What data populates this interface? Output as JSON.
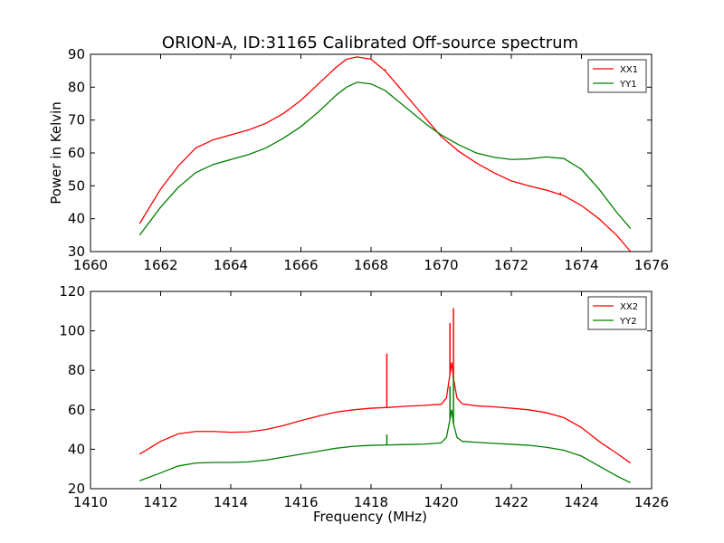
{
  "chart_data": [
    {
      "type": "line",
      "title": "ORION-A, ID:31165 Calibrated Off-source spectrum",
      "xlabel": "",
      "ylabel": "Power in Kelvin",
      "xlim": [
        1660,
        1676
      ],
      "ylim": [
        30,
        90
      ],
      "xticks": [
        1660,
        1662,
        1664,
        1666,
        1668,
        1670,
        1672,
        1674,
        1676
      ],
      "yticks": [
        30,
        40,
        50,
        60,
        70,
        80,
        90
      ],
      "legend": "top-right",
      "grid": false,
      "series": [
        {
          "name": "XX1",
          "color": "#ff0000",
          "x": [
            1661.4,
            1662.0,
            1662.5,
            1663.0,
            1663.5,
            1664.0,
            1664.5,
            1665.0,
            1665.5,
            1666.0,
            1666.5,
            1667.0,
            1667.3,
            1667.6,
            1668.0,
            1668.4,
            1668.8,
            1669.2,
            1669.6,
            1670.0,
            1670.5,
            1671.0,
            1671.5,
            1672.0,
            1672.5,
            1673.0,
            1673.5,
            1674.0,
            1674.5,
            1675.0,
            1675.4
          ],
          "y": [
            38.5,
            49,
            56,
            61.5,
            64,
            65.5,
            67,
            69,
            72,
            76,
            81,
            86,
            88.5,
            89.2,
            88.5,
            85,
            80,
            75,
            70,
            65,
            60.5,
            57,
            54,
            51.5,
            50,
            48.7,
            47,
            44,
            40,
            35,
            30
          ]
        },
        {
          "name": "YY1",
          "color": "#008000",
          "x": [
            1661.4,
            1662.0,
            1662.5,
            1663.0,
            1663.5,
            1664.0,
            1664.5,
            1665.0,
            1665.5,
            1666.0,
            1666.5,
            1667.0,
            1667.3,
            1667.6,
            1668.0,
            1668.4,
            1668.8,
            1669.2,
            1669.6,
            1670.0,
            1670.5,
            1671.0,
            1671.5,
            1672.0,
            1672.5,
            1673.0,
            1673.5,
            1674.0,
            1674.5,
            1675.0,
            1675.4
          ],
          "y": [
            35,
            43.5,
            49.5,
            54,
            56.5,
            58,
            59.5,
            61.5,
            64.5,
            68,
            72.5,
            77.5,
            80,
            81.5,
            81,
            79,
            75.5,
            72,
            68.5,
            65.5,
            62.5,
            60,
            58.7,
            58,
            58.2,
            58.8,
            58.3,
            55,
            49,
            42,
            37
          ]
        }
      ],
      "spikes": [
        {
          "series": "XX1",
          "x": 1668.4,
          "y_top": 85.5
        },
        {
          "series": "XX1",
          "x": 1673.4,
          "y_top": 48
        }
      ]
    },
    {
      "type": "line",
      "title": "",
      "xlabel": "Frequency (MHz)",
      "ylabel": "",
      "xlim": [
        1410,
        1426
      ],
      "ylim": [
        20,
        120
      ],
      "xticks": [
        1410,
        1412,
        1414,
        1416,
        1418,
        1420,
        1422,
        1424,
        1426
      ],
      "yticks": [
        20,
        40,
        60,
        80,
        100,
        120
      ],
      "legend": "top-right",
      "grid": false,
      "series": [
        {
          "name": "XX2",
          "color": "#ff0000",
          "x": [
            1411.4,
            1412.0,
            1412.5,
            1413.0,
            1413.5,
            1414.0,
            1414.5,
            1415.0,
            1415.5,
            1416.0,
            1416.5,
            1417.0,
            1417.5,
            1418.0,
            1418.5,
            1419.0,
            1419.5,
            1420.0,
            1420.15,
            1420.25,
            1420.3,
            1420.35,
            1420.45,
            1420.6,
            1421.0,
            1421.5,
            1422.0,
            1422.5,
            1423.0,
            1423.5,
            1424.0,
            1424.5,
            1425.0,
            1425.4
          ],
          "y": [
            37.5,
            44,
            47.8,
            49,
            49,
            48.6,
            48.8,
            50,
            52,
            54.5,
            56.8,
            58.8,
            60,
            60.8,
            61.2,
            61.8,
            62.2,
            62.8,
            66,
            78,
            84,
            76,
            66,
            63,
            62,
            61.5,
            60.8,
            60,
            58.5,
            56,
            51,
            44,
            38,
            33
          ]
        },
        {
          "name": "YY2",
          "color": "#008000",
          "x": [
            1411.4,
            1412.0,
            1412.5,
            1413.0,
            1413.5,
            1414.0,
            1414.5,
            1415.0,
            1415.5,
            1416.0,
            1416.5,
            1417.0,
            1417.5,
            1418.0,
            1418.5,
            1419.0,
            1419.5,
            1420.0,
            1420.15,
            1420.25,
            1420.3,
            1420.35,
            1420.45,
            1420.6,
            1421.0,
            1421.5,
            1422.0,
            1422.5,
            1423.0,
            1423.5,
            1424.0,
            1424.5,
            1425.0,
            1425.4
          ],
          "y": [
            24,
            28,
            31.5,
            33,
            33.3,
            33.3,
            33.6,
            34.5,
            36,
            37.5,
            39,
            40.5,
            41.5,
            42,
            42.2,
            42.4,
            42.6,
            43.2,
            46,
            55,
            60,
            53,
            46,
            44,
            43.5,
            43,
            42.5,
            42,
            41,
            39.5,
            36.5,
            31.5,
            26.5,
            23
          ]
        }
      ],
      "spikes": [
        {
          "series": "XX2",
          "x": 1418.45,
          "y_top": 88.5
        },
        {
          "series": "XX2",
          "x": 1420.25,
          "y_top": 104
        },
        {
          "series": "XX2",
          "x": 1420.35,
          "y_top": 111.5
        },
        {
          "series": "YY2",
          "x": 1418.45,
          "y_top": 47.5
        },
        {
          "series": "YY2",
          "x": 1420.25,
          "y_top": 72
        },
        {
          "series": "YY2",
          "x": 1420.35,
          "y_top": 77
        }
      ]
    }
  ]
}
